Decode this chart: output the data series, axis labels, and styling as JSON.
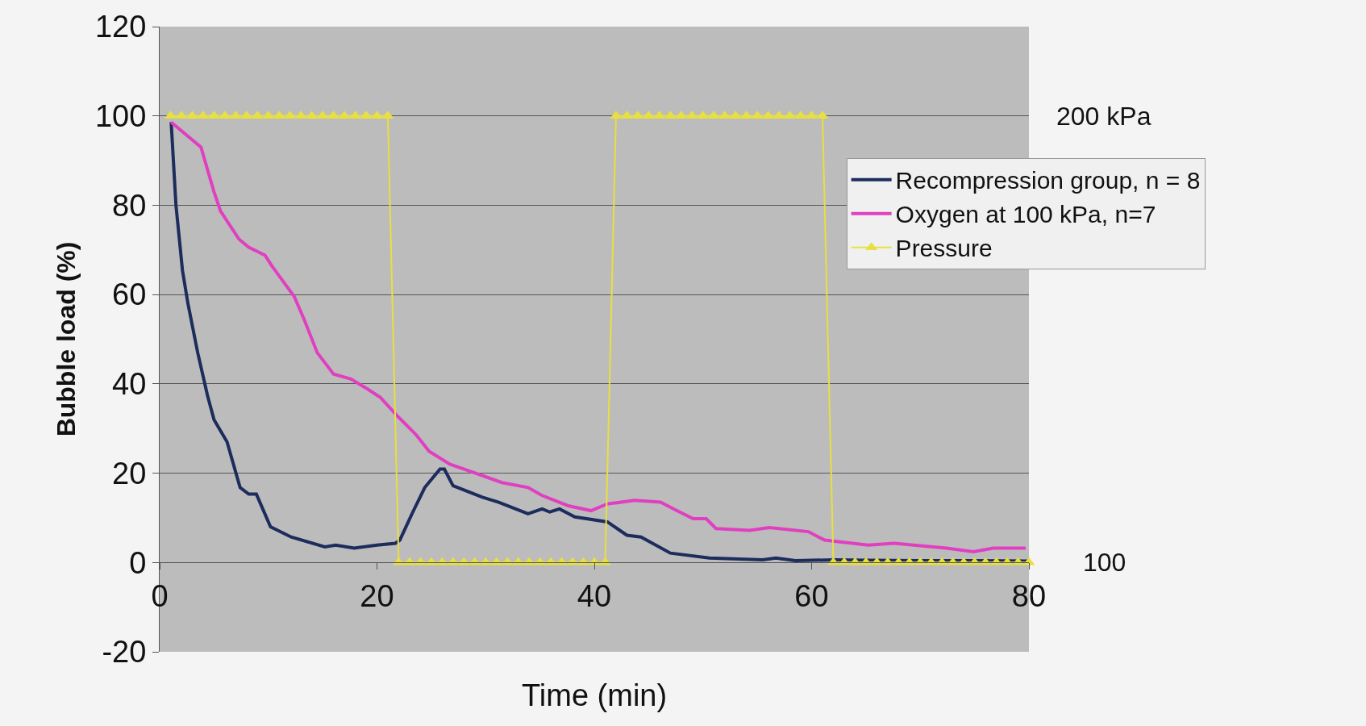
{
  "chart_data": {
    "type": "line",
    "xlabel": "Time (min)",
    "ylabel": "Bubble load (%)",
    "xlim": [
      0,
      80
    ],
    "xticks": [
      0,
      20,
      40,
      60,
      80
    ],
    "ylim": [
      -20,
      120
    ],
    "yticks": [
      -20,
      0,
      20,
      40,
      60,
      80,
      100,
      120
    ],
    "grid": "y",
    "legend": "right",
    "line_style": "solid",
    "annotations": [
      "200 kPa",
      "100"
    ],
    "series": [
      {
        "name": "Recompression group, n = 8",
        "color": "#1c2c5c",
        "marker": "none",
        "x": [
          1.06,
          1.5,
          2.1,
          2.6,
          3.5,
          4.4,
          5,
          6.2,
          7.4,
          8.2,
          8.9,
          10.2,
          12.1,
          15.2,
          16.2,
          17.9,
          20,
          21.7,
          22.1,
          23.3,
          24.4,
          25.8,
          26.2,
          27,
          29.7,
          31.2,
          33.9,
          35.2,
          35.9,
          36.8,
          38.2,
          41.2,
          43,
          44.3,
          47,
          50.6,
          55.5,
          56.7,
          58.5,
          62.1,
          65,
          70,
          75,
          80
        ],
        "values": [
          98.6,
          80,
          65.4,
          58,
          47,
          37.4,
          32,
          27,
          16.8,
          15.3,
          15.3,
          8,
          5.7,
          3.5,
          3.9,
          3.2,
          3.9,
          4.3,
          5,
          11.3,
          16.8,
          20.9,
          20.9,
          17.2,
          14.6,
          13.5,
          10.9,
          12,
          11.3,
          12,
          10.2,
          9.1,
          6.1,
          5.7,
          2.1,
          1,
          0.6,
          1,
          0.4,
          0.6,
          0.5,
          0.4,
          0.4,
          0.3
        ]
      },
      {
        "name": "Oxygen at 100 kPa, n=7",
        "color": "#e040c0",
        "marker": "none",
        "x": [
          1.06,
          3.8,
          5,
          5.6,
          7.3,
          8.2,
          9.7,
          10.3,
          12.4,
          13.3,
          14.5,
          16,
          17.6,
          19.1,
          20.3,
          21.8,
          23.6,
          24.8,
          26.7,
          28.5,
          31.5,
          33.9,
          35.2,
          37.6,
          39.7,
          41.2,
          43.7,
          46.1,
          47.6,
          49.1,
          50.3,
          51.2,
          54.3,
          56.1,
          59.7,
          61.2,
          65.2,
          67.6,
          69.4,
          72.4,
          74.9,
          76.7,
          79.7
        ],
        "values": [
          98.6,
          93,
          83,
          78.7,
          72.4,
          70.6,
          68.8,
          66.5,
          59.5,
          54.4,
          47,
          42.2,
          41.1,
          38.9,
          37,
          33,
          28.6,
          24.9,
          22,
          20.5,
          17.9,
          16.8,
          15,
          12.7,
          11.6,
          13.1,
          13.9,
          13.5,
          11.6,
          9.8,
          9.8,
          7.6,
          7.2,
          7.8,
          6.9,
          5,
          3.9,
          4.3,
          3.9,
          3.2,
          2.4,
          3.2,
          3.2
        ]
      },
      {
        "name": "Pressure",
        "color": "#e8e040",
        "marker": "triangle",
        "x": [
          1,
          2,
          3,
          4,
          5,
          6,
          7,
          8,
          9,
          10,
          11,
          12,
          13,
          14,
          15,
          16,
          17,
          18,
          19,
          20,
          21,
          22,
          23,
          24,
          25,
          26,
          27,
          28,
          29,
          30,
          31,
          32,
          33,
          34,
          35,
          36,
          37,
          38,
          39,
          40,
          41,
          42,
          43,
          44,
          45,
          46,
          47,
          48,
          49,
          50,
          51,
          52,
          53,
          54,
          55,
          56,
          57,
          58,
          59,
          60,
          61,
          62,
          63,
          64,
          65,
          66,
          67,
          68,
          69,
          70,
          71,
          72,
          73,
          74,
          75,
          76,
          77,
          78,
          79,
          80
        ],
        "values": [
          100,
          100,
          100,
          100,
          100,
          100,
          100,
          100,
          100,
          100,
          100,
          100,
          100,
          100,
          100,
          100,
          100,
          100,
          100,
          100,
          100,
          0,
          0,
          0,
          0,
          0,
          0,
          0,
          0,
          0,
          0,
          0,
          0,
          0,
          0,
          0,
          0,
          0,
          0,
          0,
          0,
          100,
          100,
          100,
          100,
          100,
          100,
          100,
          100,
          100,
          100,
          100,
          100,
          100,
          100,
          100,
          100,
          100,
          100,
          100,
          100,
          0,
          0,
          0,
          0,
          0,
          0,
          0,
          0,
          0,
          0,
          0,
          0,
          0,
          0,
          0,
          0,
          0,
          0,
          0
        ]
      }
    ]
  }
}
